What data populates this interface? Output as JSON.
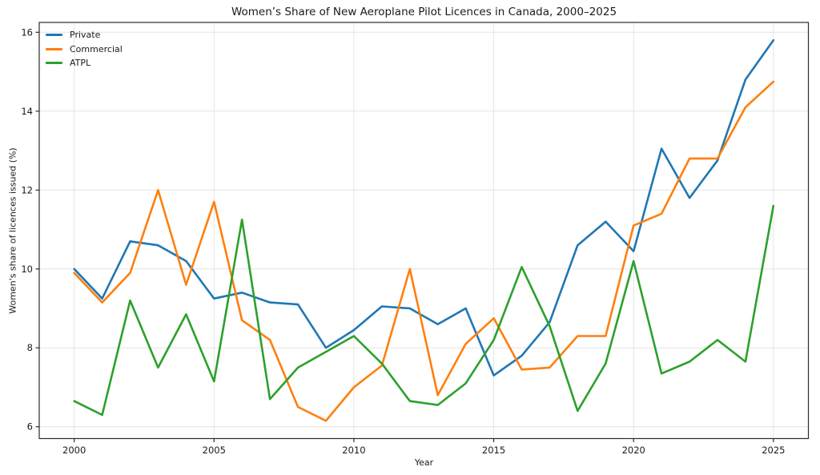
{
  "chart_data": {
    "type": "line",
    "title": "Women’s Share of New Aeroplane Pilot Licences in Canada, 2000–2025",
    "xlabel": "Year",
    "ylabel": "Women's share of licences issued (%)",
    "x": [
      2000,
      2001,
      2002,
      2003,
      2004,
      2005,
      2006,
      2007,
      2008,
      2009,
      2010,
      2011,
      2012,
      2013,
      2014,
      2015,
      2016,
      2017,
      2018,
      2019,
      2020,
      2021,
      2022,
      2023,
      2024,
      2025
    ],
    "series": [
      {
        "name": "Private",
        "color": "#1f77b4",
        "values": [
          10.0,
          9.25,
          10.7,
          10.6,
          10.2,
          9.25,
          9.4,
          9.15,
          9.1,
          8.0,
          8.45,
          9.05,
          9.0,
          8.6,
          9.0,
          7.3,
          7.8,
          8.65,
          10.6,
          11.2,
          10.45,
          13.05,
          11.8,
          12.75,
          14.8,
          15.8
        ]
      },
      {
        "name": "Commercial",
        "color": "#ff7f0e",
        "values": [
          9.9,
          9.15,
          9.9,
          12.0,
          9.6,
          11.7,
          8.7,
          8.2,
          6.5,
          6.15,
          7.0,
          7.55,
          10.0,
          6.8,
          8.1,
          8.75,
          7.45,
          7.5,
          8.3,
          8.3,
          11.1,
          11.4,
          12.8,
          12.8,
          14.1,
          14.75
        ]
      },
      {
        "name": "ATPL",
        "color": "#2ca02c",
        "values": [
          6.65,
          6.3,
          9.2,
          7.5,
          8.85,
          7.15,
          11.25,
          6.7,
          7.5,
          7.9,
          8.3,
          7.6,
          6.65,
          6.55,
          7.1,
          8.2,
          10.05,
          8.55,
          6.4,
          7.6,
          10.2,
          7.35,
          7.65,
          8.2,
          7.65,
          11.6
        ]
      }
    ],
    "xticks": [
      2000,
      2005,
      2010,
      2015,
      2020,
      2025
    ],
    "yticks": [
      6,
      8,
      10,
      12,
      14,
      16
    ],
    "xlim": [
      1998.75,
      2026.25
    ],
    "ylim": [
      5.7,
      16.25
    ],
    "grid": true,
    "legend_position": "upper left",
    "colors": {
      "grid": "#e4e4e4",
      "spine": "#2b2b2b",
      "tick_text": "#1a1a1a",
      "background": "#ffffff"
    }
  }
}
